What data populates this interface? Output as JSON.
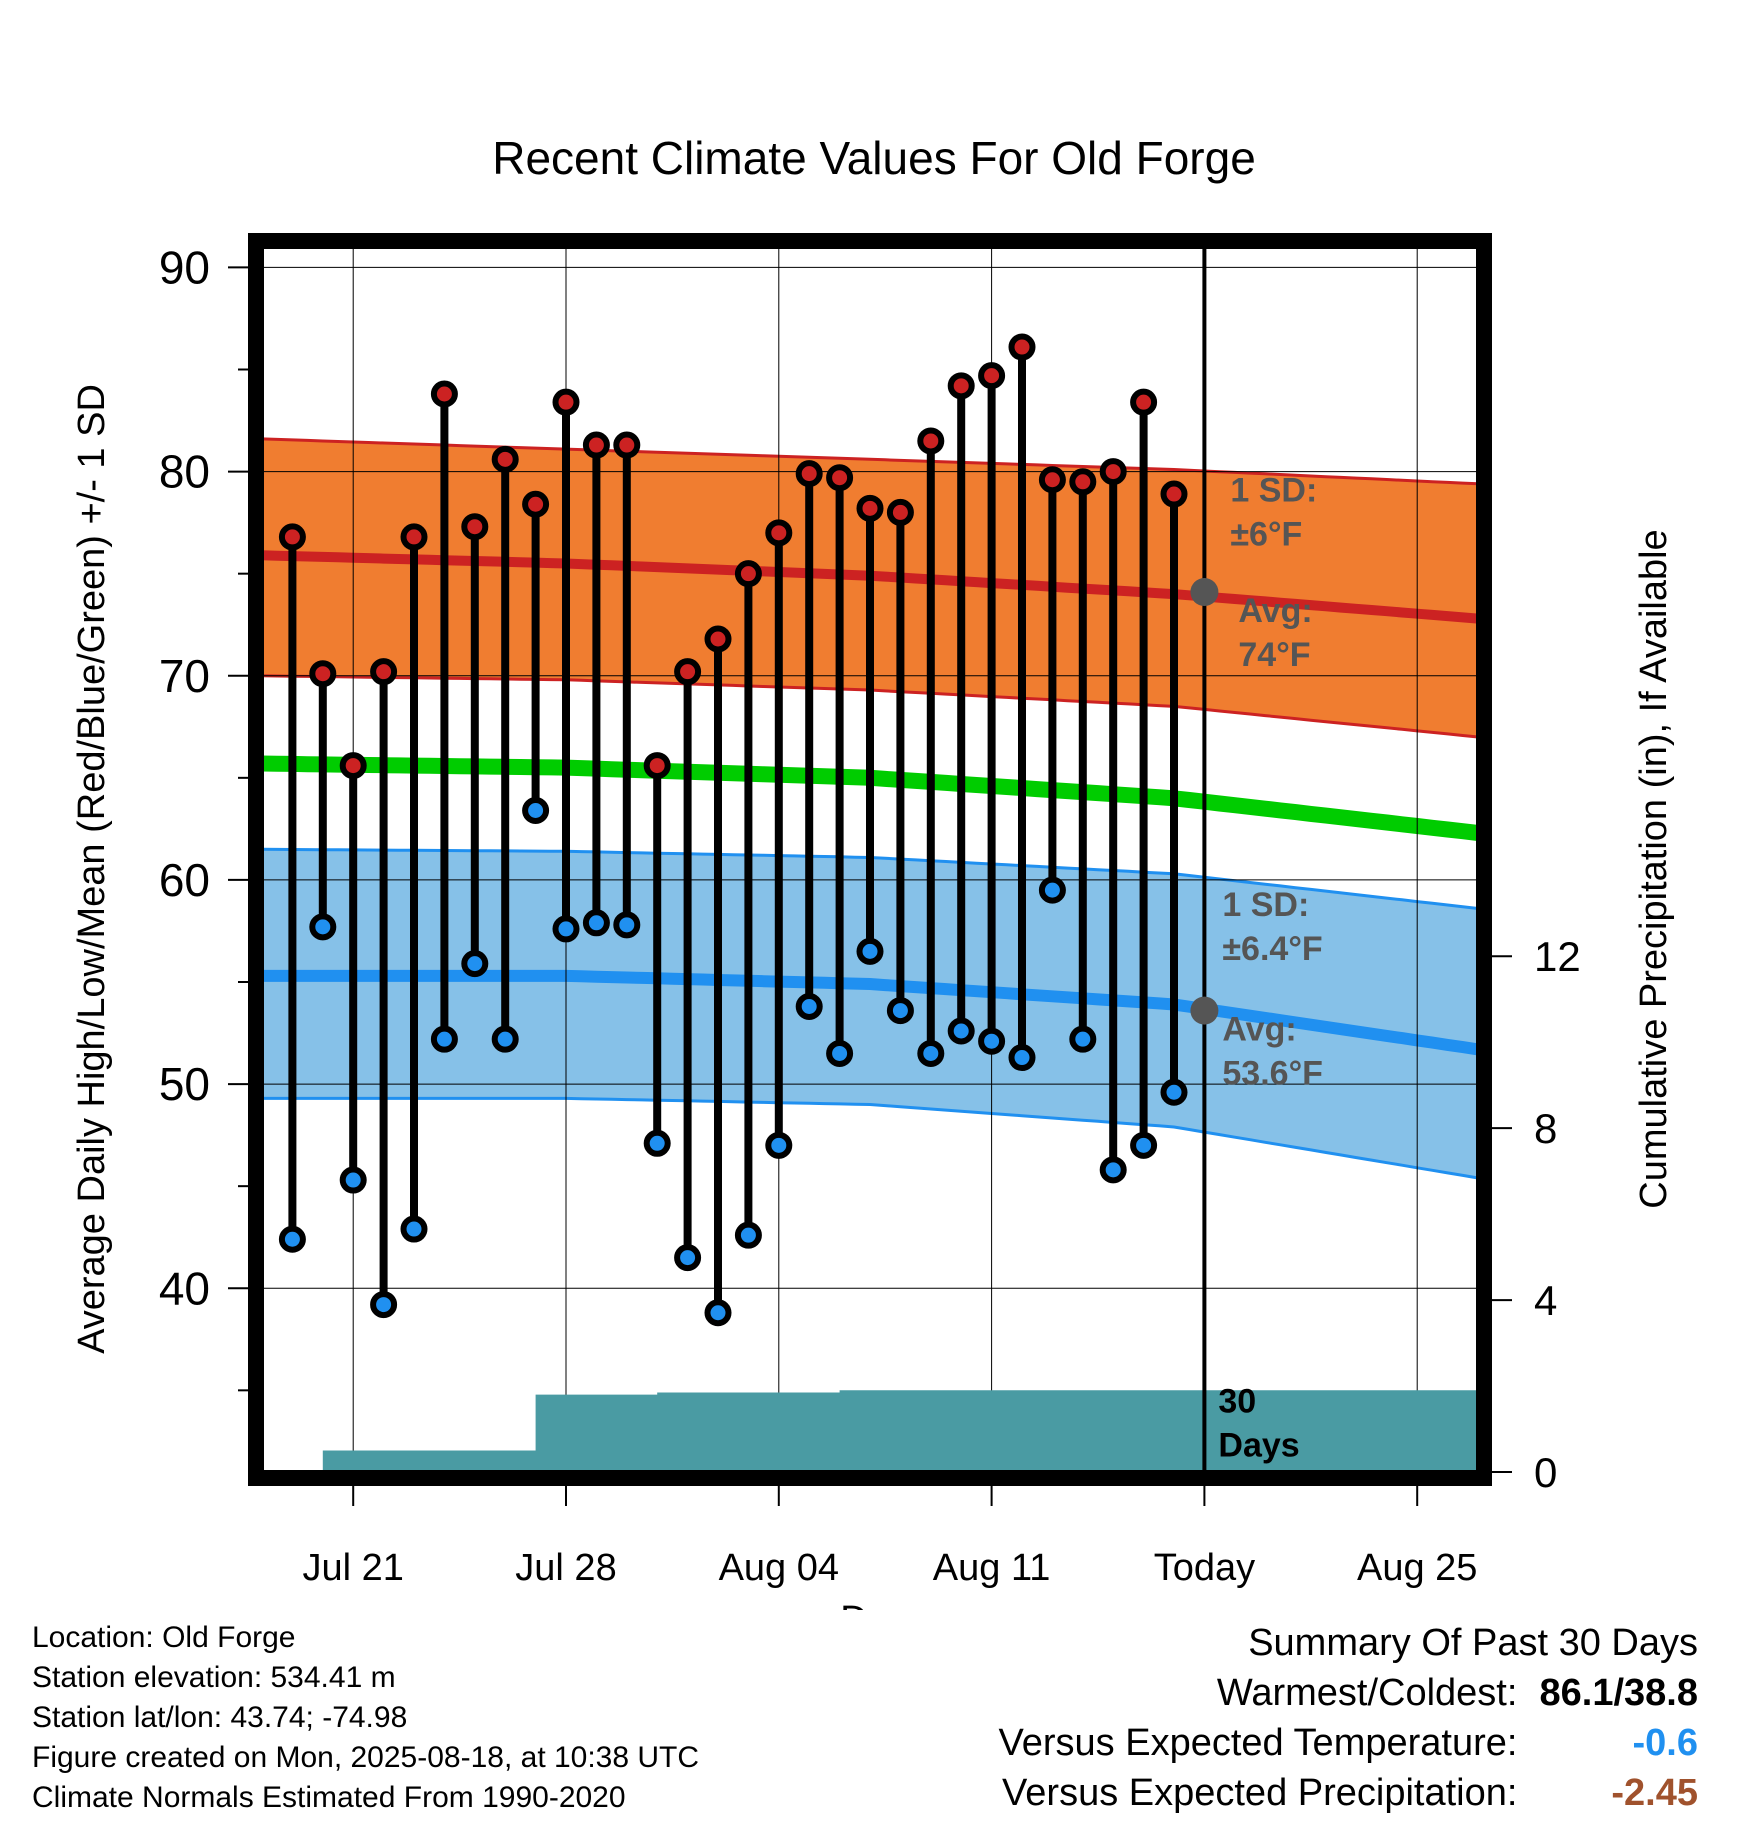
{
  "chart_data": {
    "type": "line",
    "title": "Recent Climate Values For Old Forge",
    "xlabel": "Day",
    "ylabel": "Average Daily High/Low/Mean (Red/Blue/Green) +/- 1 SD",
    "y2label": "Cumulative Precipitation (in), If Available",
    "xlim": [
      "2025-07-18",
      "2025-08-27"
    ],
    "ylim": [
      31,
      91
    ],
    "y2lim": [
      0,
      28.5
    ],
    "x_ticks": [
      {
        "date": "2025-07-21",
        "label": "Jul 21"
      },
      {
        "date": "2025-07-28",
        "label": "Jul 28"
      },
      {
        "date": "2025-08-04",
        "label": "Aug 04"
      },
      {
        "date": "2025-08-11",
        "label": "Aug 11"
      },
      {
        "date": "2025-08-18",
        "label": "Today"
      },
      {
        "date": "2025-08-25",
        "label": "Aug 25"
      }
    ],
    "y_ticks": [
      40,
      50,
      60,
      70,
      80,
      90
    ],
    "y2_ticks": [
      0,
      4,
      8,
      12
    ],
    "grid": true,
    "today": "2025-08-18",
    "dates": [
      "2025-07-19",
      "2025-07-20",
      "2025-07-21",
      "2025-07-22",
      "2025-07-23",
      "2025-07-24",
      "2025-07-25",
      "2025-07-26",
      "2025-07-27",
      "2025-07-28",
      "2025-07-29",
      "2025-07-30",
      "2025-07-31",
      "2025-08-01",
      "2025-08-02",
      "2025-08-03",
      "2025-08-04",
      "2025-08-05",
      "2025-08-06",
      "2025-08-07",
      "2025-08-08",
      "2025-08-09",
      "2025-08-10",
      "2025-08-11",
      "2025-08-12",
      "2025-08-13",
      "2025-08-14",
      "2025-08-15",
      "2025-08-16",
      "2025-08-17"
    ],
    "series": [
      {
        "name": "High",
        "color": "#cc2222",
        "values": [
          76.8,
          70.1,
          65.6,
          70.2,
          76.8,
          83.8,
          77.3,
          80.6,
          78.4,
          83.4,
          81.3,
          81.3,
          65.6,
          70.2,
          71.8,
          75.0,
          77.0,
          79.9,
          79.7,
          78.2,
          78.0,
          81.5,
          84.2,
          84.7,
          86.1,
          79.6,
          79.5,
          80.0,
          83.4,
          78.9
        ]
      },
      {
        "name": "Low",
        "color": "#2090f0",
        "values": [
          42.4,
          57.7,
          45.3,
          39.2,
          42.9,
          52.2,
          55.9,
          52.2,
          63.4,
          57.6,
          57.9,
          57.8,
          47.1,
          41.5,
          38.8,
          42.6,
          47.0,
          53.8,
          51.5,
          56.5,
          53.6,
          51.5,
          52.6,
          52.1,
          51.3,
          59.5,
          52.2,
          45.8,
          47.0,
          49.6
        ]
      }
    ],
    "normals": {
      "dates": [
        "2025-07-18",
        "2025-07-28",
        "2025-08-07",
        "2025-08-17",
        "2025-08-27"
      ],
      "high_mean": [
        75.9,
        75.5,
        74.9,
        74.0,
        72.8
      ],
      "high_upper": [
        81.6,
        81.1,
        80.6,
        80.1,
        79.4
      ],
      "high_lower": [
        70.0,
        69.8,
        69.3,
        68.5,
        67.0
      ],
      "mean": [
        65.7,
        65.5,
        65.0,
        64.0,
        62.3
      ],
      "low_mean": [
        55.3,
        55.3,
        54.9,
        53.9,
        51.7
      ],
      "low_upper": [
        61.5,
        61.4,
        61.1,
        60.3,
        58.6
      ],
      "low_lower": [
        49.3,
        49.3,
        49.0,
        47.9,
        45.4
      ],
      "high_color": "#f07d30",
      "mean_color": "#00cc00",
      "low_color": "#86c1e8"
    },
    "precip": {
      "color": "#4a9ba3",
      "dates": [
        "2025-07-19",
        "2025-07-20",
        "2025-07-21",
        "2025-07-22",
        "2025-07-23",
        "2025-07-24",
        "2025-07-25",
        "2025-07-26",
        "2025-07-27",
        "2025-07-28",
        "2025-07-29",
        "2025-07-30",
        "2025-07-31",
        "2025-08-01",
        "2025-08-02",
        "2025-08-03",
        "2025-08-04",
        "2025-08-05",
        "2025-08-06",
        "2025-08-07",
        "2025-08-08",
        "2025-08-09",
        "2025-08-10",
        "2025-08-11",
        "2025-08-12",
        "2025-08-13",
        "2025-08-14",
        "2025-08-15",
        "2025-08-16",
        "2025-08-17",
        "2025-08-18",
        "2025-08-27"
      ],
      "values": [
        0.0,
        0.5,
        0.5,
        0.5,
        0.5,
        0.5,
        0.5,
        0.5,
        1.8,
        1.8,
        1.8,
        1.8,
        1.85,
        1.85,
        1.85,
        1.85,
        1.85,
        1.85,
        1.9,
        1.9,
        1.9,
        1.9,
        1.9,
        1.9,
        1.9,
        1.9,
        1.9,
        1.9,
        1.9,
        1.9,
        1.9,
        1.9
      ]
    },
    "annotations": {
      "high_sd_line1": "1 SD:",
      "high_sd_line2": "±6°F",
      "high_avg_line1": "Avg:",
      "high_avg_line2": "74°F",
      "high_avg_value": 74.1,
      "low_sd_line1": "1 SD:",
      "low_sd_line2": "±6.4°F",
      "low_avg_line1": "Avg:",
      "low_avg_line2": "53.6°F",
      "low_avg_value": 53.6,
      "days_line1": "30",
      "days_line2": "Days",
      "text_color": "#555555"
    }
  },
  "info": {
    "location": "Location: Old Forge",
    "elevation": "Station elevation: 534.41 m",
    "latlon": "Station lat/lon: 43.74; -74.98",
    "created": "Figure created on Mon, 2025-08-18, at 10:38 UTC",
    "normals": "Climate Normals Estimated From 1990-2020"
  },
  "summary": {
    "title": "Summary Of Past 30 Days",
    "warm_cold_label": "Warmest/Coldest:",
    "warm_cold_value": "86.1/38.8",
    "temp_label": "Versus Expected Temperature:",
    "temp_value": "-0.6",
    "temp_color": "#2090f0",
    "precip_label": "Versus Expected Precipitation:",
    "precip_value": "-2.45",
    "precip_color": "#a0522d"
  }
}
